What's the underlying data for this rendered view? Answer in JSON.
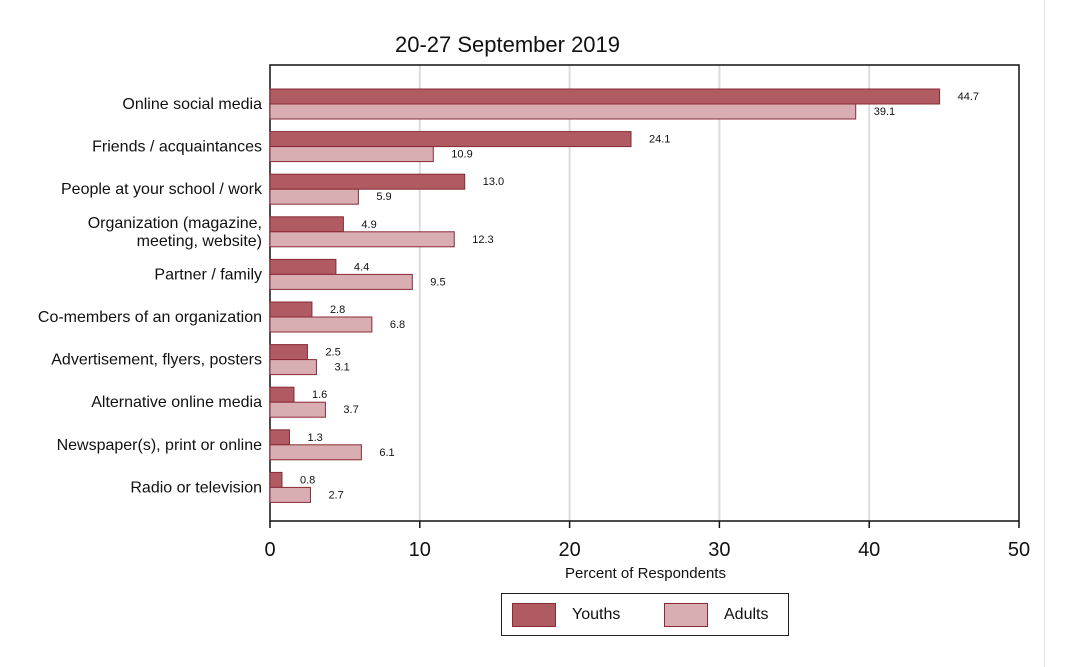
{
  "chart_data": {
    "type": "bar",
    "orientation": "horizontal",
    "title": "20-27 September 2019",
    "xlabel": "Percent of Respondents",
    "ylabel": "",
    "xlim": [
      0,
      50
    ],
    "xticks": [
      0,
      10,
      20,
      30,
      40,
      50
    ],
    "grid": true,
    "categories": [
      "Online social media",
      "Friends / acquaintances",
      "People at your school / work",
      [
        "Organization (magazine,",
        "meeting, website)"
      ],
      "Partner / family",
      "Co-members of an organization",
      "Advertisement, flyers, posters",
      "Alternative online media",
      "Newspaper(s), print or online",
      "Radio or television"
    ],
    "series": [
      {
        "name": "Youths",
        "color": "#b05a62",
        "values": [
          44.7,
          24.1,
          13.0,
          4.9,
          4.4,
          2.8,
          2.5,
          1.6,
          1.3,
          0.8
        ],
        "labels": [
          "44.7",
          "24.1",
          "13.0",
          "4.9",
          "4.4",
          "2.8",
          "2.5",
          "1.6",
          "1.3",
          "0.8"
        ]
      },
      {
        "name": "Adults",
        "color": "#d9aeb2",
        "values": [
          39.1,
          10.9,
          5.9,
          12.3,
          9.5,
          6.8,
          3.1,
          3.7,
          6.1,
          2.7
        ],
        "labels": [
          "39.1",
          "10.9",
          "5.9",
          "12.3",
          "9.5",
          "6.8",
          "3.1",
          "3.7",
          "6.1",
          "2.7"
        ]
      }
    ],
    "legend": {
      "position": "bottom",
      "entries": [
        "Youths",
        "Adults"
      ]
    }
  }
}
